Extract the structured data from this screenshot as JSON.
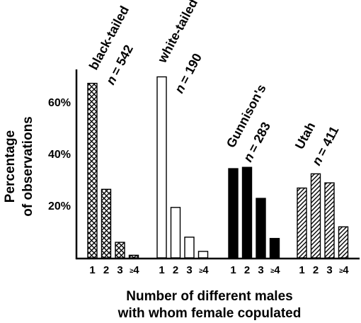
{
  "chart_data": {
    "type": "bar",
    "ylabel_line1": "Percentage",
    "ylabel_line2": "of observations",
    "xlabel_line1": "Number of different males",
    "xlabel_line2": "with whom female copulated",
    "ylim": [
      0,
      75
    ],
    "yticks": [
      20,
      40,
      60
    ],
    "ytick_labels": [
      "20%",
      "40%",
      "60%"
    ],
    "categories": [
      "1",
      "2",
      "3",
      "≥4"
    ],
    "grid": false,
    "groups": [
      {
        "name": "black-tailed",
        "n_label": "= 542",
        "n_prefix": "n",
        "pattern": "crosshatch",
        "values": [
          67.5,
          26.5,
          6,
          1
        ]
      },
      {
        "name": "white-tailed",
        "n_label": "= 190",
        "n_prefix": "n",
        "pattern": "open",
        "values": [
          70,
          19.5,
          8,
          2.5
        ]
      },
      {
        "name": "Gunnison's",
        "n_label": "= 283",
        "n_prefix": "n",
        "pattern": "solid",
        "values": [
          34.5,
          35,
          23,
          7.5
        ]
      },
      {
        "name": "Utah",
        "n_label": "= 411",
        "n_prefix": "n",
        "pattern": "diagonal",
        "values": [
          27,
          32.5,
          29,
          12
        ]
      }
    ],
    "colors": {
      "bar_edge": "#000000",
      "solid_fill": "#000000",
      "open_fill": "#ffffff",
      "axis": "#000000"
    }
  }
}
